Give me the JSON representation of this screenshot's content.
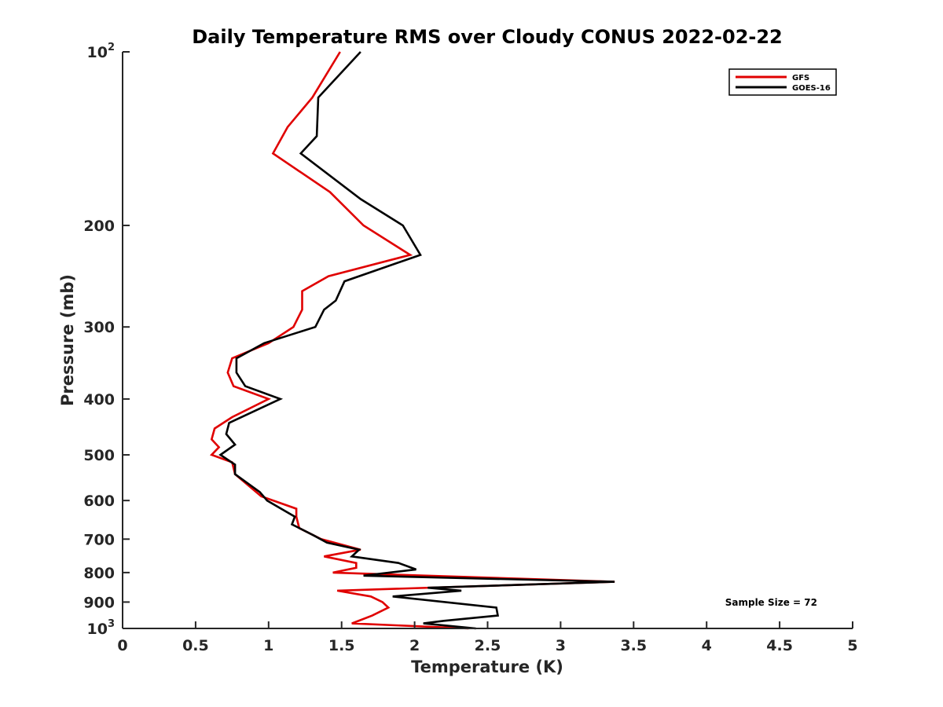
{
  "chart_data": {
    "type": "line",
    "title": "Daily Temperature RMS over Cloudy CONUS 2022-02-22",
    "xlabel": "Temperature (K)",
    "ylabel": "Pressure (mb)",
    "xlim": [
      0,
      5
    ],
    "ylim": [
      100,
      1000
    ],
    "y_scale": "log",
    "y_reversed": true,
    "grid": false,
    "legend_position": "top-right",
    "x_ticks": [
      0,
      0.5,
      1,
      1.5,
      2,
      2.5,
      3,
      3.5,
      4,
      4.5,
      5
    ],
    "x_tick_labels": [
      "0",
      "0.5",
      "1",
      "1.5",
      "2",
      "2.5",
      "3",
      "3.5",
      "4",
      "4.5",
      "5"
    ],
    "y_ticks": [
      {
        "value": 100,
        "base": "10",
        "exp": "2"
      },
      {
        "value": 200,
        "label": "200"
      },
      {
        "value": 300,
        "label": "300"
      },
      {
        "value": 400,
        "label": "400"
      },
      {
        "value": 500,
        "label": "500"
      },
      {
        "value": 600,
        "label": "600"
      },
      {
        "value": 700,
        "label": "700"
      },
      {
        "value": 800,
        "label": "800"
      },
      {
        "value": 900,
        "label": "900"
      },
      {
        "value": 1000,
        "base": "10",
        "exp": "3"
      }
    ],
    "series": [
      {
        "name": "GFS",
        "color": "#e00000",
        "points": [
          [
            1.49,
            100
          ],
          [
            1.3,
            120
          ],
          [
            1.13,
            135
          ],
          [
            1.03,
            150
          ],
          [
            1.42,
            175
          ],
          [
            1.65,
            200
          ],
          [
            1.97,
            225
          ],
          [
            1.41,
            245
          ],
          [
            1.23,
            260
          ],
          [
            1.23,
            280
          ],
          [
            1.17,
            300
          ],
          [
            1.0,
            320
          ],
          [
            0.75,
            340
          ],
          [
            0.72,
            360
          ],
          [
            0.76,
            380
          ],
          [
            1.0,
            400
          ],
          [
            0.75,
            430
          ],
          [
            0.63,
            450
          ],
          [
            0.61,
            470
          ],
          [
            0.66,
            485
          ],
          [
            0.61,
            500
          ],
          [
            0.75,
            515
          ],
          [
            0.77,
            540
          ],
          [
            0.95,
            590
          ],
          [
            1.19,
            620
          ],
          [
            1.19,
            640
          ],
          [
            1.21,
            670
          ],
          [
            1.36,
            700
          ],
          [
            1.63,
            730
          ],
          [
            1.38,
            750
          ],
          [
            1.6,
            770
          ],
          [
            1.6,
            785
          ],
          [
            1.44,
            800
          ],
          [
            3.37,
            830
          ],
          [
            1.47,
            860
          ],
          [
            1.7,
            880
          ],
          [
            1.78,
            900
          ],
          [
            1.82,
            920
          ],
          [
            1.71,
            950
          ],
          [
            1.57,
            980
          ],
          [
            2.37,
            1000
          ]
        ]
      },
      {
        "name": "GOES-16",
        "color": "#000000",
        "points": [
          [
            1.63,
            100
          ],
          [
            1.34,
            120
          ],
          [
            1.33,
            140
          ],
          [
            1.22,
            150
          ],
          [
            1.63,
            180
          ],
          [
            1.92,
            200
          ],
          [
            2.04,
            225
          ],
          [
            1.52,
            250
          ],
          [
            1.46,
            270
          ],
          [
            1.38,
            280
          ],
          [
            1.32,
            300
          ],
          [
            0.97,
            320
          ],
          [
            0.78,
            340
          ],
          [
            0.78,
            360
          ],
          [
            0.84,
            380
          ],
          [
            1.08,
            400
          ],
          [
            0.73,
            440
          ],
          [
            0.71,
            460
          ],
          [
            0.77,
            480
          ],
          [
            0.67,
            500
          ],
          [
            0.77,
            520
          ],
          [
            0.77,
            540
          ],
          [
            0.94,
            580
          ],
          [
            0.99,
            600
          ],
          [
            1.18,
            640
          ],
          [
            1.16,
            660
          ],
          [
            1.31,
            690
          ],
          [
            1.4,
            710
          ],
          [
            1.62,
            730
          ],
          [
            1.57,
            750
          ],
          [
            1.89,
            770
          ],
          [
            2.01,
            790
          ],
          [
            1.65,
            810
          ],
          [
            3.37,
            830
          ],
          [
            2.09,
            850
          ],
          [
            2.32,
            860
          ],
          [
            1.85,
            880
          ],
          [
            2.56,
            920
          ],
          [
            2.57,
            950
          ],
          [
            2.2,
            970
          ],
          [
            2.06,
            980
          ],
          [
            2.42,
            1000
          ]
        ]
      }
    ],
    "annotation": "Sample Size = 72"
  }
}
